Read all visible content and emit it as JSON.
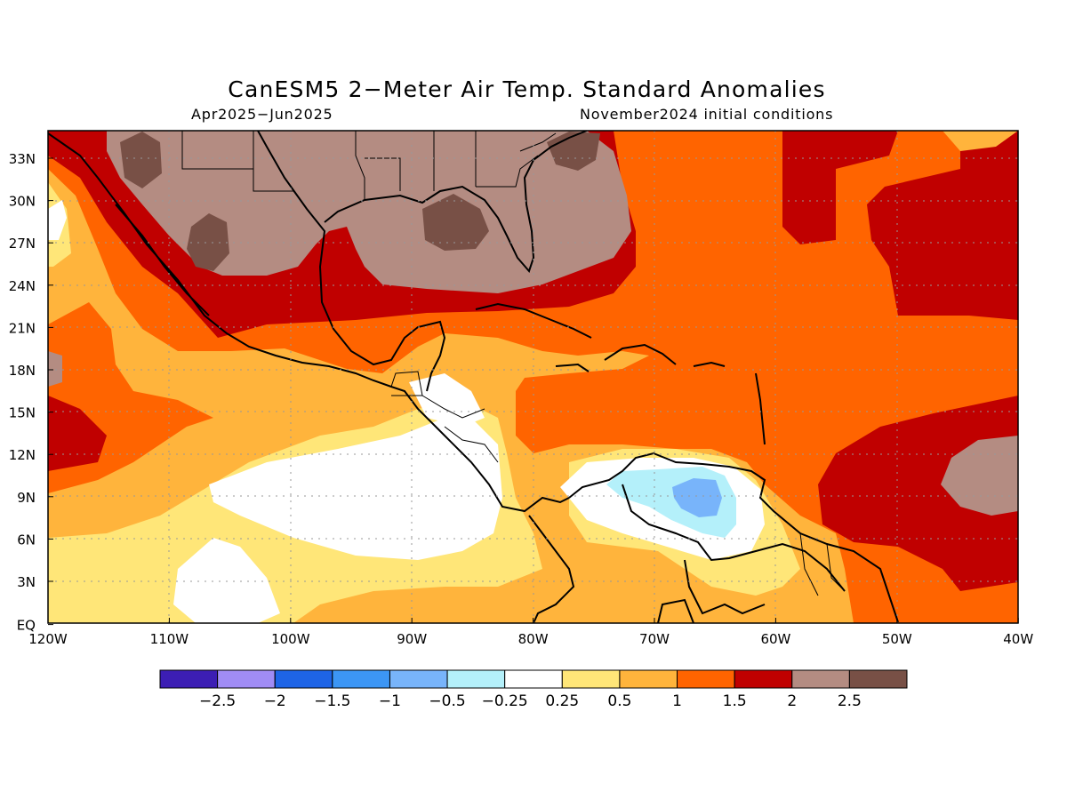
{
  "title": "CanESM5 2−Meter Air Temp. Standard Anomalies",
  "period": "Apr2025−Jun2025",
  "init": "November2024 initial conditions",
  "lat_labels": [
    "33N",
    "30N",
    "27N",
    "24N",
    "21N",
    "18N",
    "15N",
    "12N",
    "9N",
    "6N",
    "3N",
    "EQ"
  ],
  "lon_labels": [
    "120W",
    "110W",
    "100W",
    "90W",
    "80W",
    "70W",
    "60W",
    "50W",
    "40W"
  ],
  "colorbar": {
    "colors": [
      "#3c1eb4",
      "#a08cf5",
      "#1e64e6",
      "#3c96f5",
      "#78b4fa",
      "#b4f0fa",
      "#ffffff",
      "#ffe678",
      "#ffb43c",
      "#ff6400",
      "#c00000",
      "#b48c82",
      "#785046"
    ],
    "labels": [
      "−2.5",
      "−2",
      "−1.5",
      "−1",
      "−0.5",
      "−0.25",
      "0.25",
      "0.5",
      "1",
      "1.5",
      "2",
      "2.5"
    ]
  }
}
